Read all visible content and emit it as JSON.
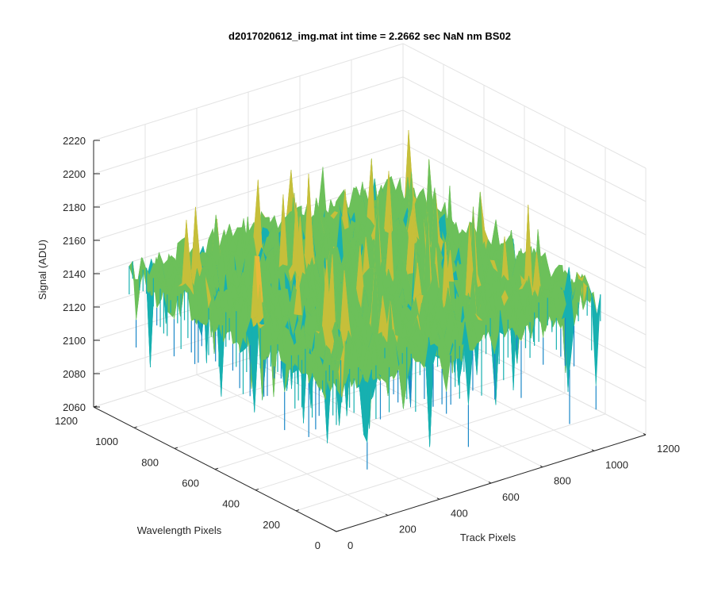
{
  "chart_data": {
    "type": "surface",
    "title": "d2017020612_img.mat int time = 2.2662 sec  NaN nm BS02",
    "xlabel": "Track Pixels",
    "ylabel": "Wavelength Pixels",
    "zlabel": "Signal (ADU)",
    "xlim": [
      0,
      1200
    ],
    "ylim": [
      0,
      1200
    ],
    "zlim": [
      2060,
      2220
    ],
    "x_ticks": [
      0,
      200,
      400,
      600,
      800,
      1000,
      1200
    ],
    "x_tick_labels": [
      "0",
      "200",
      "400",
      "600",
      "800",
      "1000",
      "1200"
    ],
    "y_ticks": [
      0,
      200,
      400,
      600,
      800,
      1000,
      1200
    ],
    "y_tick_labels": [
      "0",
      "200",
      "400",
      "600",
      "800",
      "1000",
      "1200"
    ],
    "z_ticks": [
      2060,
      2080,
      2100,
      2120,
      2140,
      2160,
      2180,
      2200,
      2220
    ],
    "z_tick_labels": [
      "2060",
      "2080",
      "2100",
      "2120",
      "2140",
      "2160",
      "2180",
      "2200",
      "2220"
    ],
    "data_extent": {
      "x": [
        0,
        1024
      ],
      "y": [
        0,
        1024
      ]
    },
    "signal_mean": 2150,
    "signal_range": [
      2060,
      2215
    ],
    "grid": true,
    "colormap": [
      "#1b88c8",
      "#17b0b0",
      "#6cc05a",
      "#c6bf3a",
      "#e8b83a"
    ]
  }
}
